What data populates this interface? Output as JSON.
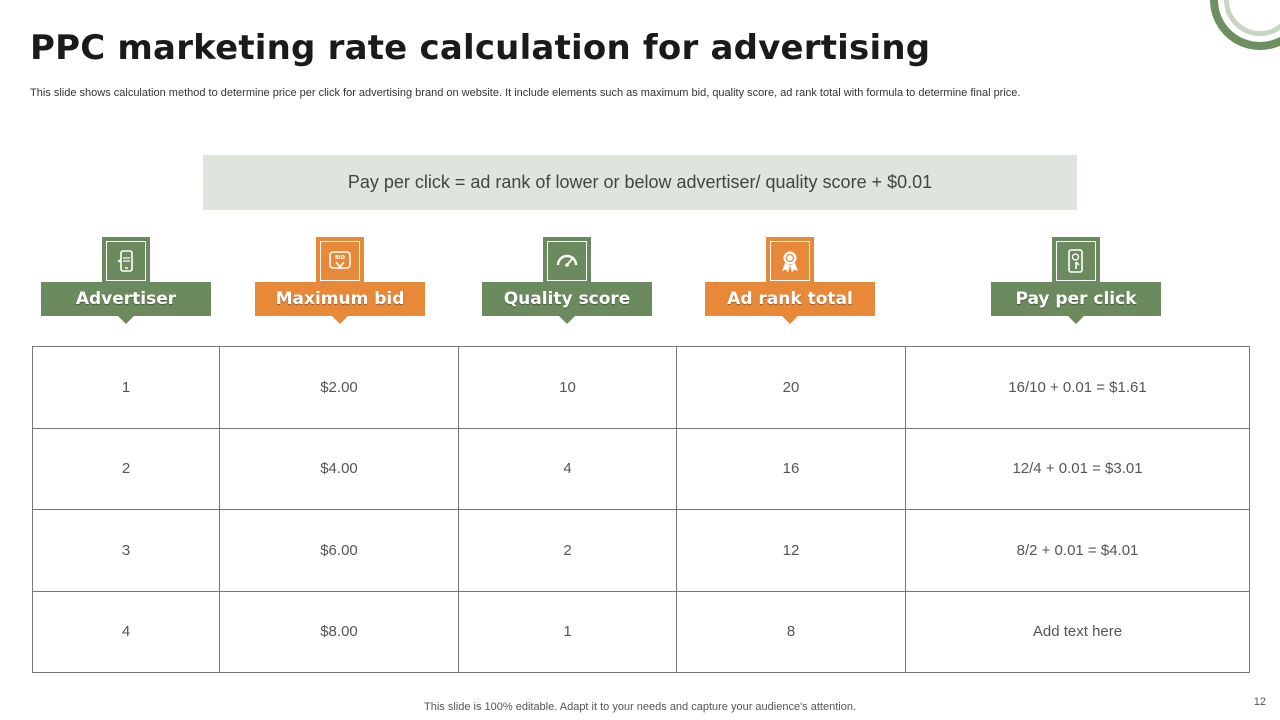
{
  "slide": {
    "title": "PPC marketing rate calculation for advertising",
    "subtitle": "This slide shows calculation method to determine price per click for advertising brand on website. It include elements such as maximum bid, quality score, ad rank total with formula to determine final price.",
    "formula": "Pay per click = ad rank of lower or below advertiser/ quality score + $0.01",
    "headers": [
      {
        "label": "Advertiser",
        "icon": "mobile-icon",
        "color": "#6b8a5e"
      },
      {
        "label": "Maximum bid",
        "icon": "bid-icon",
        "color": "#e8893a"
      },
      {
        "label": "Quality score",
        "icon": "gauge-icon",
        "color": "#6b8a5e"
      },
      {
        "label": "Ad rank total",
        "icon": "award-ribbon-icon",
        "color": "#e8893a"
      },
      {
        "label": "Pay per click",
        "icon": "click-device-icon",
        "color": "#6b8a5e"
      }
    ],
    "bid_icon_text": "BID",
    "rows": [
      [
        "1",
        "$2.00",
        "10",
        "20",
        "16/10 + 0.01 = $1.61"
      ],
      [
        "2",
        "$4.00",
        "4",
        "16",
        "12/4 + 0.01 = $3.01"
      ],
      [
        "3",
        "$6.00",
        "2",
        "12",
        "8/2 + 0.01 = $4.01"
      ],
      [
        "4",
        "$8.00",
        "1",
        "8",
        "Add text here"
      ]
    ],
    "footer": "This slide is 100% editable. Adapt it to your needs and capture your audience's attention.",
    "page_number": "12"
  }
}
